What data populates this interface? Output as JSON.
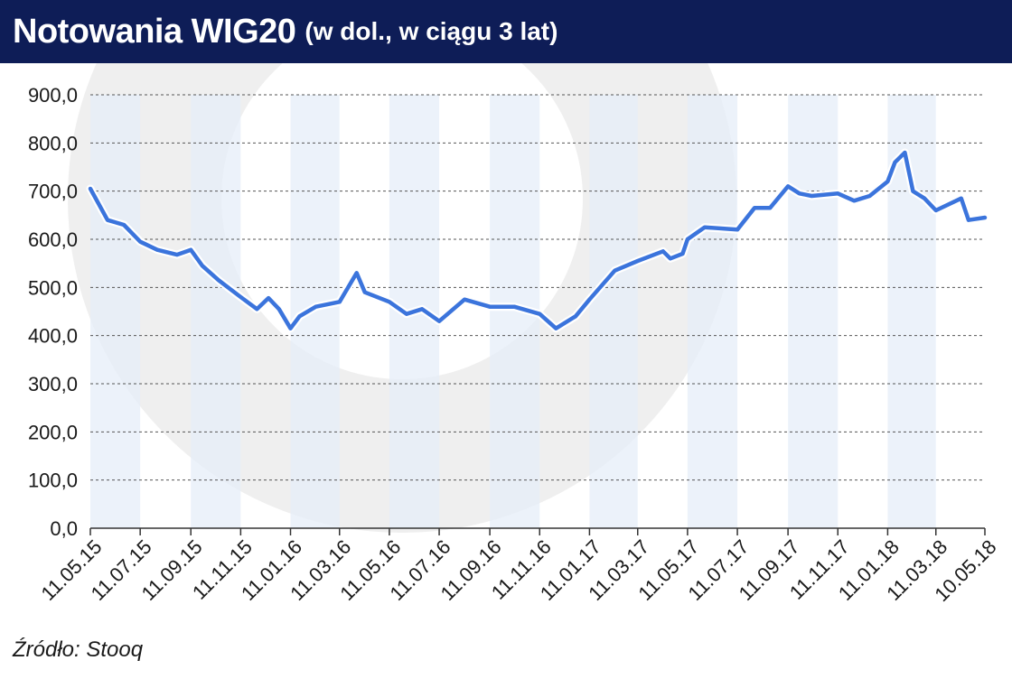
{
  "header": {
    "title": "Notowania WIG20",
    "subtitle": "(w dol., w ciągu 3 lat)"
  },
  "source": "Źródło: Stooq",
  "colors": {
    "header_bg": "#0e1d57",
    "line": "#3b74dc",
    "band": "#e6eef8",
    "watermark": "#efefef",
    "grid": "#555555"
  },
  "chart_data": {
    "type": "line",
    "title": "Notowania WIG20",
    "subtitle": "(w dol., w ciągu 3 lat)",
    "ylim": [
      0,
      900
    ],
    "y_ticks": [
      "900,0",
      "800,0",
      "700,0",
      "600,0",
      "500,0",
      "400,0",
      "300,0",
      "200,0",
      "100,0",
      "0,0"
    ],
    "x_ticks": [
      "11.05.15",
      "11.07.15",
      "11.09.15",
      "11.11.15",
      "11.01.16",
      "11.03.16",
      "11.05.16",
      "11.07.16",
      "11.09.16",
      "11.11.16",
      "11.01.17",
      "11.03.17",
      "11.05.17",
      "11.07.17",
      "11.09.17",
      "11.11.17",
      "11.01.18",
      "11.03.18",
      "10.05.18"
    ],
    "grid": "horizontal dashed",
    "legend": "none",
    "series": [
      {
        "x": [
          "11.05.15",
          "01.06.15",
          "21.06.15",
          "11.07.15",
          "01.08.15",
          "25.08.15",
          "11.09.15",
          "25.09.15",
          "15.10.15",
          "11.11.15",
          "01.12.15",
          "15.12.15",
          "28.12.15",
          "11.01.16",
          "22.01.16",
          "11.02.16",
          "11.03.16",
          "01.04.16",
          "11.04.16",
          "11.05.16",
          "01.06.16",
          "20.06.16",
          "11.07.16",
          "11.08.16",
          "11.09.16",
          "11.10.16",
          "11.11.16",
          "01.12.16",
          "25.12.16",
          "11.01.17",
          "11.02.17",
          "11.03.17",
          "11.04.17",
          "20.04.17",
          "05.05.17",
          "11.05.17",
          "01.06.17",
          "11.07.17",
          "01.08.17",
          "20.08.17",
          "11.09.17",
          "25.09.17",
          "10.10.17",
          "11.11.17",
          "01.12.17",
          "20.12.17",
          "11.01.18",
          "20.01.18",
          "01.02.18",
          "11.02.18",
          "25.02.18",
          "11.03.18",
          "11.04.18",
          "20.04.18",
          "10.05.18"
        ],
        "values": [
          705,
          640,
          630,
          595,
          578,
          568,
          578,
          545,
          515,
          480,
          455,
          478,
          455,
          415,
          440,
          460,
          470,
          530,
          490,
          470,
          445,
          455,
          430,
          475,
          460,
          460,
          445,
          415,
          440,
          475,
          535,
          555,
          575,
          560,
          570,
          600,
          625,
          620,
          665,
          665,
          710,
          695,
          690,
          695,
          680,
          690,
          720,
          760,
          780,
          700,
          685,
          660,
          685,
          640,
          645
        ]
      }
    ]
  }
}
